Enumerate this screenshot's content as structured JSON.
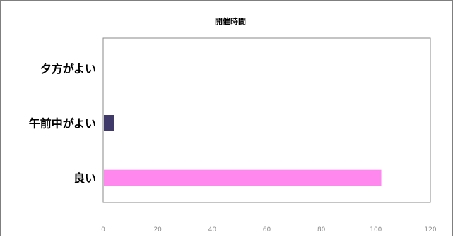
{
  "chart_data": {
    "type": "bar",
    "orientation": "horizontal",
    "title": "開催時間",
    "categories": [
      "夕方がよい",
      "午前中がよい",
      "良い"
    ],
    "values": [
      0,
      4,
      102
    ],
    "bar_colors": [
      "#3a3a6e",
      "#403a6a",
      "#ff88ee"
    ],
    "xlabel": "",
    "ylabel": "",
    "xlim": [
      0,
      120
    ],
    "xticks": [
      0,
      20,
      40,
      60,
      80,
      100,
      120
    ],
    "grid": false,
    "legend": "none"
  }
}
